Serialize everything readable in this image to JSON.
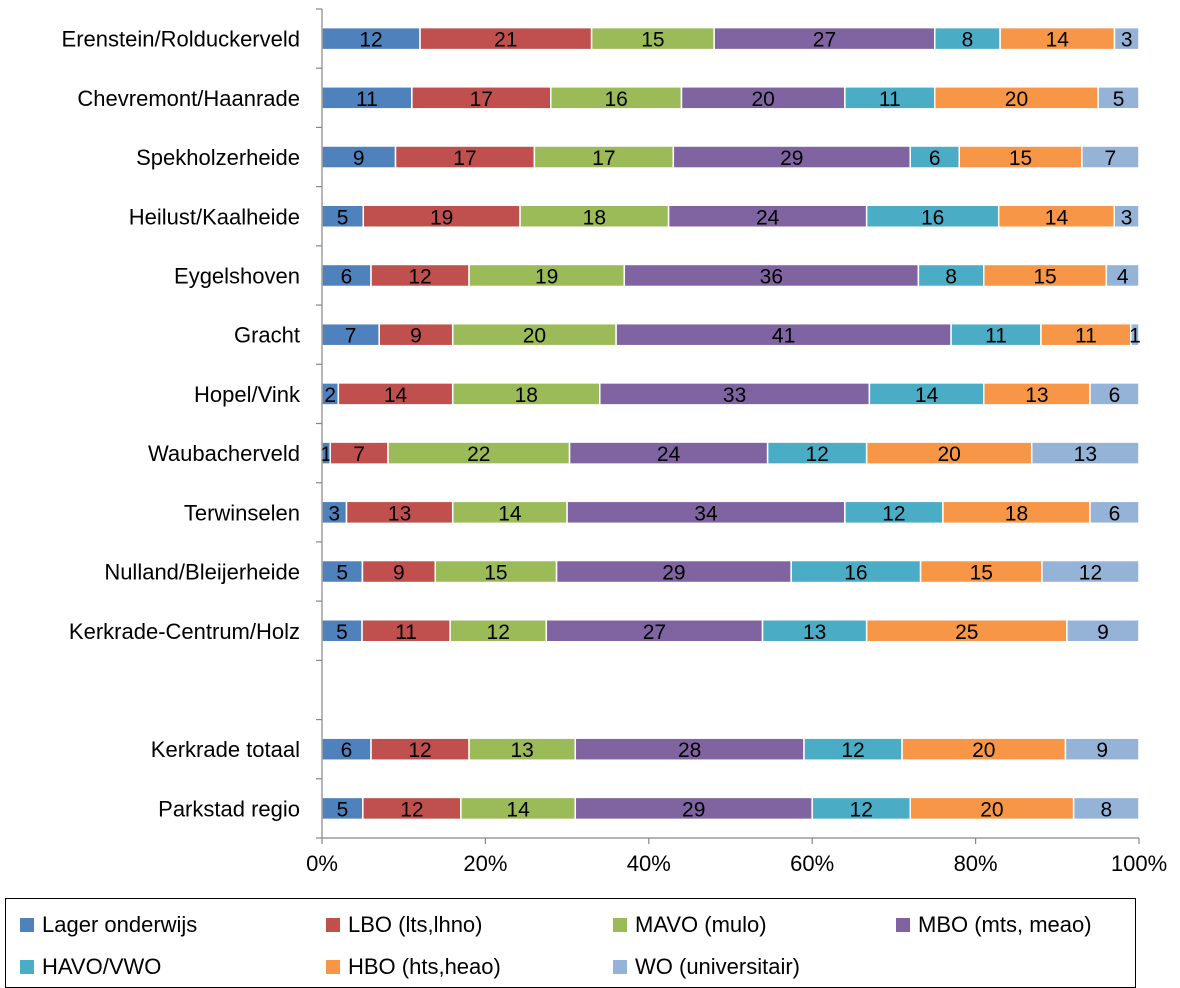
{
  "chart_data": {
    "type": "bar",
    "orientation": "horizontal",
    "stacked": "percent",
    "categories": [
      "Erenstein/Rolduckerveld",
      "Chevremont/Haanrade",
      "Spekholzerheide",
      "Heilust/Kaalheide",
      "Eygelshoven",
      "Gracht",
      "Hopel/Vink",
      "Waubacherveld",
      "Terwinselen",
      "Nulland/Bleijerheide",
      "Kerkrade-Centrum/Holz",
      "",
      "Kerkrade totaal",
      "Parkstad regio"
    ],
    "series": [
      {
        "name": "Lager onderwijs",
        "color": "#4F81BD",
        "values": [
          12,
          11,
          9,
          5,
          6,
          7,
          2,
          1,
          3,
          5,
          5,
          null,
          6,
          5
        ]
      },
      {
        "name": "LBO (lts,lhno)",
        "color": "#C0504D",
        "values": [
          21,
          17,
          17,
          19,
          12,
          9,
          14,
          7,
          13,
          9,
          11,
          null,
          12,
          12
        ]
      },
      {
        "name": "MAVO (mulo)",
        "color": "#9BBB59",
        "values": [
          15,
          16,
          17,
          18,
          19,
          20,
          18,
          22,
          14,
          15,
          12,
          null,
          13,
          14
        ]
      },
      {
        "name": "MBO (mts, meao)",
        "color": "#8064A2",
        "values": [
          27,
          20,
          29,
          24,
          36,
          41,
          33,
          24,
          34,
          29,
          27,
          null,
          28,
          29
        ]
      },
      {
        "name": "HAVO/VWO",
        "color": "#4BACC6",
        "values": [
          8,
          11,
          6,
          16,
          8,
          11,
          14,
          12,
          12,
          16,
          13,
          null,
          12,
          12
        ]
      },
      {
        "name": "HBO (hts,heao)",
        "color": "#F79646",
        "values": [
          14,
          20,
          15,
          14,
          15,
          11,
          13,
          20,
          18,
          15,
          25,
          null,
          20,
          20
        ]
      },
      {
        "name": "WO (universitair)",
        "color": "#95B3D7",
        "values": [
          3,
          5,
          7,
          3,
          4,
          1,
          6,
          13,
          6,
          12,
          9,
          null,
          9,
          8
        ]
      }
    ],
    "x_ticks": [
      "0%",
      "20%",
      "40%",
      "60%",
      "80%",
      "100%"
    ],
    "xlim": [
      0,
      100
    ],
    "grid": false,
    "legend_position": "bottom",
    "data_labels": true
  }
}
